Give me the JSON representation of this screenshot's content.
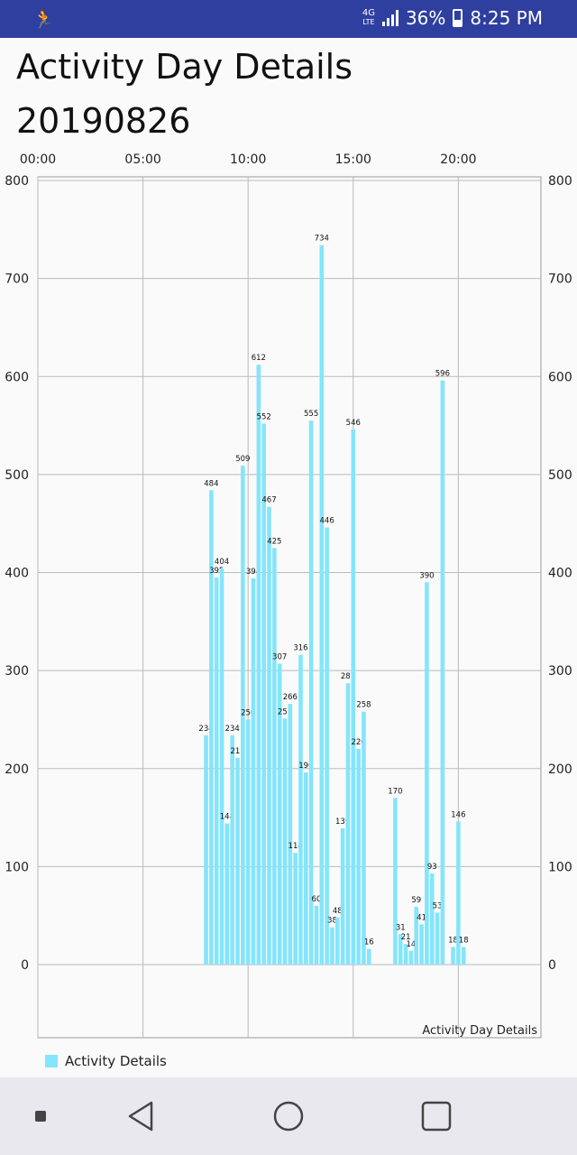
{
  "status_bar": {
    "network": "4G",
    "lte": "LTE",
    "battery_percent": "36%",
    "battery_level": 0.36,
    "time": "8:25 PM",
    "app_icon": "running-person-icon"
  },
  "header": {
    "title": "Activity Day Details",
    "date": "20190826"
  },
  "legend": {
    "label": "Activity Details",
    "color": "#84e5fb"
  },
  "nav_bar": {
    "icons": [
      "square-small-icon",
      "back-triangle-icon",
      "home-circle-icon",
      "recents-square-icon"
    ]
  },
  "chart_data": {
    "type": "bar",
    "description_label": "Activity Day Details",
    "x_tick_labels": [
      "00:00",
      "05:00",
      "10:00",
      "15:00",
      "20:00"
    ],
    "x_tick_hours": [
      0,
      5,
      10,
      15,
      20
    ],
    "xlim_hours": [
      0,
      24
    ],
    "ylim": [
      0,
      800
    ],
    "y_ticks": [
      0,
      100,
      200,
      300,
      400,
      500,
      600,
      700,
      800
    ],
    "grid": true,
    "legend_position": "bottom-left",
    "bar_color": "#84e5fb",
    "series": [
      {
        "name": "Activity Details",
        "x_hours": [
          8.0,
          8.25,
          8.5,
          8.75,
          9.0,
          9.25,
          9.5,
          9.75,
          10.0,
          10.25,
          10.5,
          10.75,
          11.0,
          11.25,
          11.5,
          11.75,
          12.0,
          12.25,
          12.5,
          12.75,
          13.0,
          13.25,
          13.5,
          13.75,
          14.0,
          14.25,
          14.5,
          14.75,
          15.0,
          15.25,
          15.5,
          15.75,
          17.0,
          17.25,
          17.5,
          17.75,
          18.0,
          18.25,
          18.5,
          18.75,
          19.0,
          19.25,
          19.75,
          20.0,
          20.25
        ],
        "values": [
          234,
          484,
          395,
          404,
          144,
          234,
          211,
          509,
          250,
          394,
          612,
          552,
          467,
          425,
          307,
          251,
          266,
          114,
          316,
          196,
          555,
          60,
          734,
          446,
          38,
          48,
          139,
          287,
          546,
          220,
          258,
          16,
          170,
          31,
          21,
          14,
          59,
          41,
          390,
          93,
          53,
          596,
          18,
          146,
          18
        ]
      }
    ]
  }
}
